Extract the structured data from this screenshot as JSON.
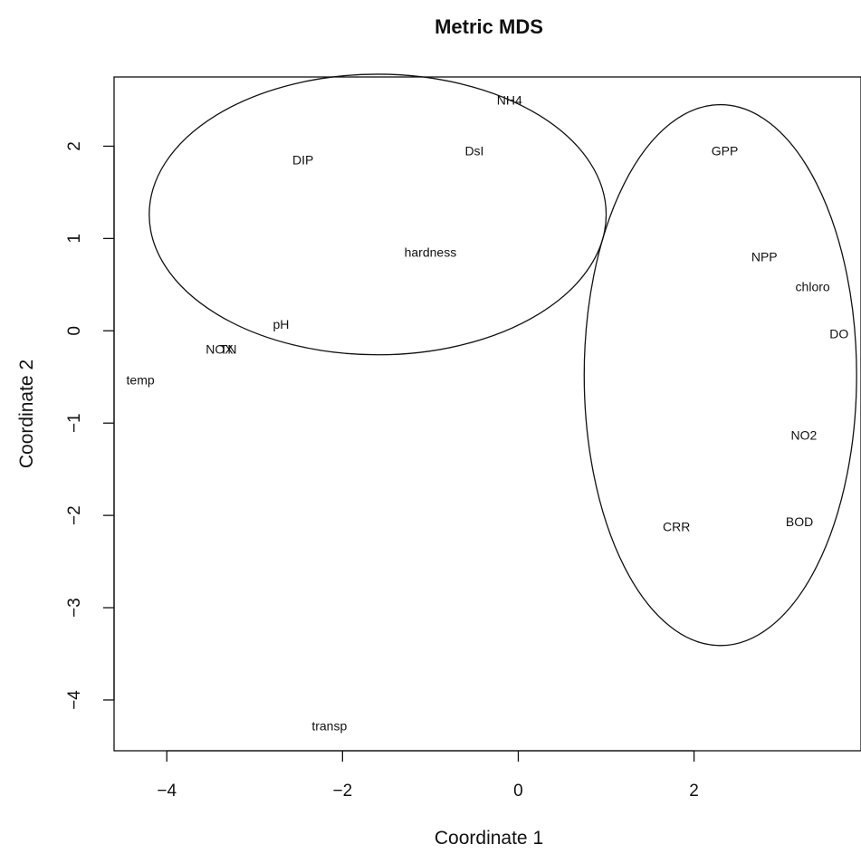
{
  "chart_data": {
    "type": "scatter",
    "title": "Metric MDS",
    "xlabel": "Coordinate 1",
    "ylabel": "Coordinate 2",
    "xlim": [
      -4.6,
      3.9
    ],
    "ylim": [
      -4.55,
      2.75
    ],
    "xticks": [
      -4,
      -2,
      0,
      2
    ],
    "yticks": [
      -4,
      -3,
      -2,
      -1,
      0,
      1,
      2
    ],
    "grid": false,
    "points": [
      {
        "label": "NH4",
        "x": -0.1,
        "y": 2.5
      },
      {
        "label": "DsI",
        "x": -0.5,
        "y": 1.95
      },
      {
        "label": "DIP",
        "x": -2.45,
        "y": 1.85
      },
      {
        "label": "GPP",
        "x": 2.35,
        "y": 1.95
      },
      {
        "label": "hardness",
        "x": -1.0,
        "y": 0.85
      },
      {
        "label": "NPP",
        "x": 2.8,
        "y": 0.8
      },
      {
        "label": "chloro",
        "x": 3.35,
        "y": 0.48
      },
      {
        "label": "DO",
        "x": 3.65,
        "y": -0.03
      },
      {
        "label": "pH",
        "x": -2.7,
        "y": 0.07
      },
      {
        "label": "NOX",
        "x": -3.4,
        "y": -0.2
      },
      {
        "label": "TN",
        "x": -3.3,
        "y": -0.2
      },
      {
        "label": "temp",
        "x": -4.3,
        "y": -0.53
      },
      {
        "label": "NO2",
        "x": 3.25,
        "y": -1.13
      },
      {
        "label": "CRR",
        "x": 1.8,
        "y": -2.12
      },
      {
        "label": "BOD",
        "x": 3.2,
        "y": -2.07
      },
      {
        "label": "transp",
        "x": -2.15,
        "y": -4.28
      }
    ],
    "ellipses": [
      {
        "cx": -1.6,
        "cy": 1.26,
        "rx": 2.6,
        "ry": 1.52
      },
      {
        "cx": 2.3,
        "cy": -0.48,
        "rx": 1.55,
        "ry": 2.93
      }
    ]
  }
}
